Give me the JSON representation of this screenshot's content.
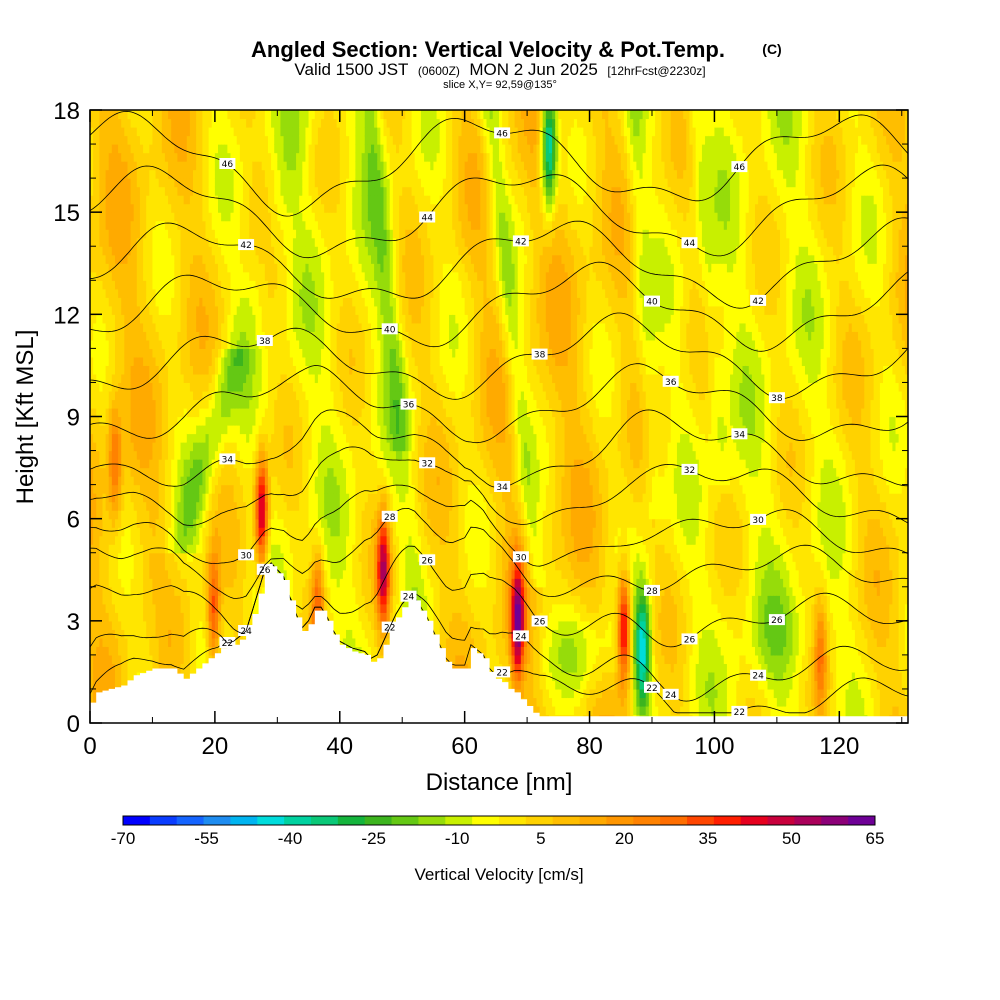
{
  "chart_data": {
    "type": "heatmap",
    "title": "Angled Section: Vertical Velocity & Pot.Temp.",
    "title_suffix": "(C)",
    "subtitle": {
      "valid": "Valid 1500 JST",
      "utc": "(0600Z)",
      "date": "MON 2 Jun 2025",
      "forecast": "[12hrFcst@2230z]"
    },
    "slice": "slice X,Y= 92,59@135°",
    "xlabel": "Distance [nm]",
    "ylabel": "Height [Kft MSL]",
    "xlim": [
      0,
      131
    ],
    "ylim": [
      0,
      18
    ],
    "x_ticks": [
      0,
      20,
      40,
      60,
      80,
      100,
      120
    ],
    "y_ticks": [
      0,
      3,
      6,
      9,
      12,
      15,
      18
    ],
    "grid": false,
    "colorbar": {
      "title": "Vertical Velocity [cm/s]",
      "min": -70,
      "max": 65,
      "step": 5,
      "tick_labels": [
        -70,
        -55,
        -40,
        -25,
        -10,
        5,
        20,
        35,
        50,
        65
      ],
      "colors": [
        "#0000ff",
        "#0a3cff",
        "#1464ff",
        "#1e8cf0",
        "#00b4f0",
        "#00dcdc",
        "#00d2a0",
        "#0ac878",
        "#14b43c",
        "#3cb41e",
        "#64c814",
        "#96dc0a",
        "#c8f000",
        "#ffff00",
        "#ffe600",
        "#ffd200",
        "#ffbe00",
        "#ffaa00",
        "#ff9600",
        "#ff8200",
        "#ff6e00",
        "#ff4600",
        "#ff1e00",
        "#e6001e",
        "#c8003c",
        "#aa005a",
        "#8c0078",
        "#6e0096"
      ]
    },
    "terrain": [
      [
        0,
        0.6
      ],
      [
        1,
        0.9
      ],
      [
        5,
        1.1
      ],
      [
        7,
        1.4
      ],
      [
        10,
        1.6
      ],
      [
        13,
        1.6
      ],
      [
        15,
        1.3
      ],
      [
        17,
        1.6
      ],
      [
        19,
        1.9
      ],
      [
        21,
        2.2
      ],
      [
        23,
        2.3
      ],
      [
        25,
        2.6
      ],
      [
        26,
        3.2
      ],
      [
        27,
        3.8
      ],
      [
        28,
        4.4
      ],
      [
        29,
        4.6
      ],
      [
        31,
        4.2
      ],
      [
        32,
        3.6
      ],
      [
        33,
        3.1
      ],
      [
        34,
        2.7
      ],
      [
        35,
        2.9
      ],
      [
        36,
        3.3
      ],
      [
        37,
        3.3
      ],
      [
        38,
        3.0
      ],
      [
        39,
        2.6
      ],
      [
        40,
        2.3
      ],
      [
        42,
        2.1
      ],
      [
        44,
        2.0
      ],
      [
        45,
        1.8
      ],
      [
        46,
        1.9
      ],
      [
        47,
        2.3
      ],
      [
        48,
        2.7
      ],
      [
        49,
        3.1
      ],
      [
        50,
        3.4
      ],
      [
        51,
        3.6
      ],
      [
        52,
        3.6
      ],
      [
        53,
        3.3
      ],
      [
        54,
        3.0
      ],
      [
        55,
        2.6
      ],
      [
        56,
        2.2
      ],
      [
        57,
        1.8
      ],
      [
        58,
        1.6
      ],
      [
        60,
        1.6
      ],
      [
        61,
        2.2
      ],
      [
        63,
        1.9
      ],
      [
        64,
        1.5
      ],
      [
        65,
        1.3
      ],
      [
        66,
        1.2
      ],
      [
        67,
        1.0
      ],
      [
        68,
        0.9
      ],
      [
        69,
        0.7
      ],
      [
        70,
        0.5
      ],
      [
        71,
        0.3
      ],
      [
        72,
        0.2
      ],
      [
        131,
        0.2
      ]
    ],
    "updrafts": [
      {
        "x": 27.5,
        "z": 6.2,
        "peak": 60
      },
      {
        "x": 47.0,
        "z": 4.5,
        "peak": 55
      },
      {
        "x": 68.5,
        "z": 3.0,
        "peak": 60
      },
      {
        "x": 85.5,
        "z": 2.8,
        "peak": 55
      },
      {
        "x": 19.8,
        "z": 3.3,
        "peak": 40
      },
      {
        "x": 36.5,
        "z": 3.4,
        "peak": 35
      },
      {
        "x": 117.0,
        "z": 2.0,
        "peak": 30
      },
      {
        "x": 4.0,
        "z": 7.6,
        "peak": 30
      }
    ],
    "downdrafts": [
      {
        "x": 73.5,
        "z": 17.0,
        "peak": -45
      },
      {
        "x": 88.5,
        "z": 2.2,
        "peak": -40
      }
    ],
    "isentropes": [
      {
        "label": "22",
        "z0": 0.45
      },
      {
        "label": "24",
        "z0": 1.3
      },
      {
        "label": "26",
        "z0": 2.8
      },
      {
        "label": "28",
        "z0": 4.2
      },
      {
        "label": "30",
        "z0": 5.3
      },
      {
        "label": "32",
        "z0": 6.6
      },
      {
        "label": "34",
        "z0": 7.8
      },
      {
        "label": "36",
        "z0": 9.3
      },
      {
        "label": "38",
        "z0": 10.7
      },
      {
        "label": "40",
        "z0": 12.2
      },
      {
        "label": "42",
        "z0": 13.5
      },
      {
        "label": "44",
        "z0": 15.0
      },
      {
        "label": "46",
        "z0": 16.5
      }
    ]
  }
}
